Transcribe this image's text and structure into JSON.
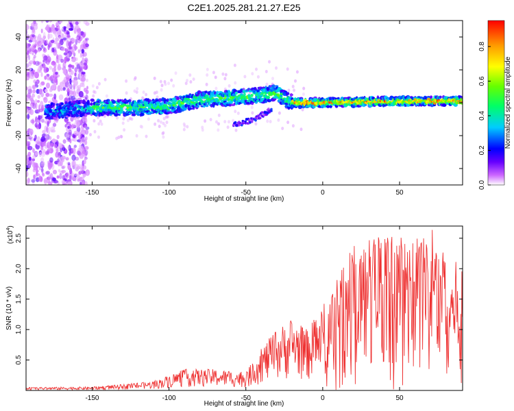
{
  "title": "C2E1.2025.281.21.27.E25",
  "chart_data": [
    {
      "type": "heatmap",
      "name": "spectrogram",
      "xlabel": "Height of straight line (km)",
      "ylabel": "Frequency (Hz)",
      "xlim": [
        -193,
        91
      ],
      "ylim": [
        -50,
        50
      ],
      "xticks": [
        -150,
        -100,
        -50,
        0,
        50
      ],
      "yticks": [
        -40,
        -20,
        0,
        20,
        40
      ],
      "colorbar": {
        "label": "Normalized spectral amplitude",
        "range": [
          0.0,
          0.95
        ],
        "ticks": [
          0.0,
          0.2,
          0.4,
          0.6,
          0.8
        ],
        "colormap": [
          "#ffffff",
          "#cc66ff",
          "#6600ff",
          "#0000ff",
          "#00ccff",
          "#00ff66",
          "#66ff00",
          "#ffff00",
          "#ff9900",
          "#ff0000"
        ]
      },
      "ridge": {
        "description_points_km_hz": [
          [
            -175,
            -5
          ],
          [
            -150,
            -3
          ],
          [
            -120,
            -3
          ],
          [
            -100,
            -2
          ],
          [
            -80,
            2
          ],
          [
            -60,
            3
          ],
          [
            -45,
            4
          ],
          [
            -30,
            6
          ],
          [
            -20,
            0
          ],
          [
            0,
            0
          ],
          [
            50,
            1
          ],
          [
            91,
            1
          ]
        ],
        "secondary_branch_km_hz": [
          [
            -55,
            -13
          ],
          [
            -45,
            -10
          ],
          [
            -35,
            -5
          ]
        ]
      }
    },
    {
      "type": "line",
      "name": "snr",
      "xlabel": "Height of straight line (km)",
      "ylabel": "SNR (10 * v/v)",
      "multiplier_label": "(x10",
      "multiplier_exp": "4",
      "xlim": [
        -193,
        91
      ],
      "ylim": [
        0,
        2.7
      ],
      "xticks": [
        -150,
        -100,
        -50,
        0,
        50
      ],
      "yticks": [
        0.5,
        1.0,
        1.5,
        2.0,
        2.5
      ],
      "ytick_labels": [
        "0.5",
        "1.0",
        "1.5",
        "2.0",
        "2.5"
      ],
      "color": "#ee3333",
      "envelope_km_value": [
        [
          -193,
          0.05
        ],
        [
          -150,
          0.06
        ],
        [
          -130,
          0.1
        ],
        [
          -110,
          0.15
        ],
        [
          -90,
          0.35
        ],
        [
          -70,
          0.35
        ],
        [
          -50,
          0.3
        ],
        [
          -40,
          0.7
        ],
        [
          -30,
          1.0
        ],
        [
          -20,
          1.2
        ],
        [
          -10,
          1.0
        ],
        [
          0,
          1.4
        ],
        [
          10,
          1.9
        ],
        [
          20,
          2.4
        ],
        [
          40,
          2.6
        ],
        [
          60,
          2.5
        ],
        [
          70,
          2.7
        ],
        [
          80,
          2.3
        ],
        [
          91,
          2.0
        ]
      ]
    }
  ]
}
